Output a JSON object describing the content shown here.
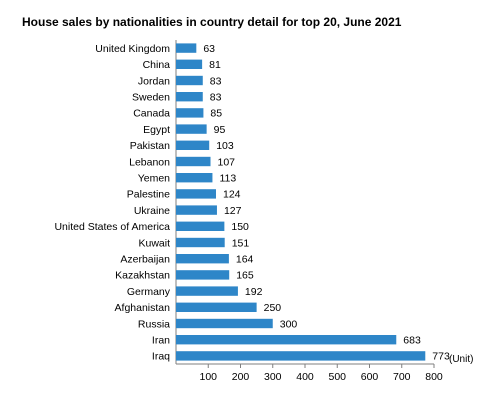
{
  "chart_data": {
    "type": "bar",
    "orientation": "horizontal",
    "title": "House sales by nationalities in country detail for top 20, June 2021",
    "unit_label": "(Unit)",
    "categories": [
      "United Kingdom",
      "China",
      "Jordan",
      "Sweden",
      "Canada",
      "Egypt",
      "Pakistan",
      "Lebanon",
      "Yemen",
      "Palestine",
      "Ukraine",
      "United States of America",
      "Kuwait",
      "Azerbaijan",
      "Kazakhstan",
      "Germany",
      "Afghanistan",
      "Russia",
      "Iran",
      "Iraq"
    ],
    "values": [
      63,
      81,
      83,
      83,
      85,
      95,
      103,
      107,
      113,
      124,
      127,
      150,
      151,
      164,
      165,
      192,
      250,
      300,
      683,
      773
    ],
    "xlim": [
      0,
      800
    ],
    "xticks": [
      100,
      200,
      300,
      400,
      500,
      600,
      700,
      800
    ],
    "grid": false,
    "bar_color": "#2e86c8"
  }
}
